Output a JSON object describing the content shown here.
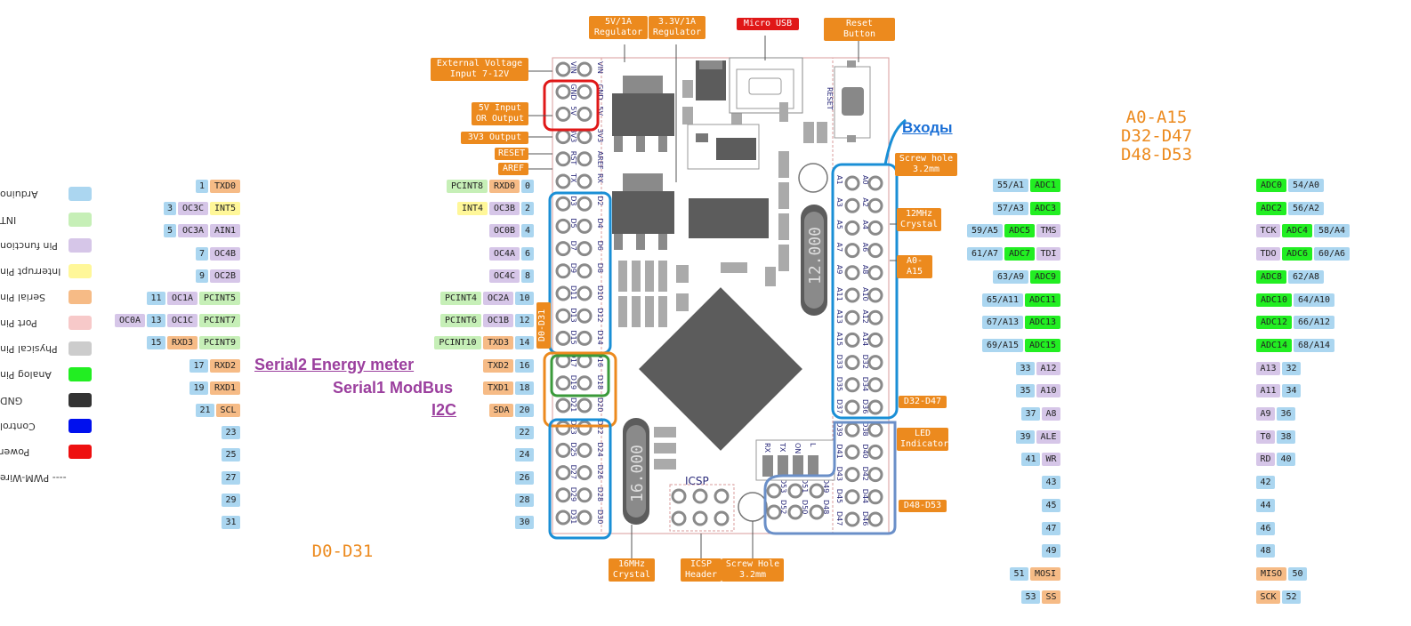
{
  "legend": [
    {
      "label": "Arduino",
      "color": "#abd6f0"
    },
    {
      "label": "INT",
      "color": "#c6efb7"
    },
    {
      "label": "Pin function",
      "color": "#d6c6e8"
    },
    {
      "label": "Interrupt Pin",
      "color": "#fff799"
    },
    {
      "label": "Serial Pin",
      "color": "#f6bb86"
    },
    {
      "label": "Port Pin",
      "color": "#f7c9c9"
    },
    {
      "label": "Physical Pin",
      "color": "#cccccc"
    },
    {
      "label": "Analog Pin",
      "color": "#22ee22"
    },
    {
      "label": "GND",
      "color": "#333333"
    },
    {
      "label": "Control",
      "color": "#0010ee"
    },
    {
      "label": "Power",
      "color": "#ee1010"
    },
    {
      "label": "---- PWM-Wire",
      "color": ""
    }
  ],
  "callouts": {
    "reg5v": "5V/1A\nRegulator",
    "reg33": "3.3V/1A\nRegulator",
    "usb": "Micro USB",
    "reset_btn": "Reset Button",
    "ext_volt": "External Voltage\nInput 7-12V",
    "v5_io": "5V Input\nOR Output",
    "v33_out": "3V3 Output",
    "reset": "RESET",
    "aref": "AREF",
    "screw_top": "Screw hole\n3.2mm",
    "crystal12": "12MHz\nCrystal",
    "a0a15": "A0-A15",
    "d32d47": "D32-D47",
    "led": "LED\nIndicator",
    "d48d53": "D48-D53",
    "d0d31_vert": "D0-D31",
    "crystal16": "16MHz\nCrystal",
    "icsp_hdr": "ICSP\nHeader",
    "screw_bot": "Screw Hole\n3.2mm"
  },
  "titles": {
    "right_group": "A0-A15\nD32-D47\nD48-D53",
    "left_group": "D0-D31",
    "inputs_note": "Входы",
    "serial2": "Serial2 Energy meter",
    "serial1": "Serial1 ModBus",
    "i2c": "I2C",
    "icsp": "ICSP",
    "crystal12_mark": "12.000",
    "crystal16_mark": "16.000",
    "reset_mark": "RESET"
  },
  "left_far_rows": [
    [
      {
        "t": "1",
        "c": "ard"
      },
      {
        "t": "TXD0",
        "c": "ser"
      }
    ],
    [
      {
        "t": "3",
        "c": "ard"
      },
      {
        "t": "OC3C",
        "c": "pcint"
      },
      {
        "t": "INT5",
        "c": "intr"
      }
    ],
    [
      {
        "t": "5",
        "c": "ard"
      },
      {
        "t": "OC3A",
        "c": "pcint"
      },
      {
        "t": "AIN1",
        "c": "pcint"
      }
    ],
    [
      {
        "t": "7",
        "c": "ard"
      },
      {
        "t": "OC4B",
        "c": "pcint"
      }
    ],
    [
      {
        "t": "9",
        "c": "ard"
      },
      {
        "t": "OC2B",
        "c": "pcint"
      }
    ],
    [
      {
        "t": "11",
        "c": "ard"
      },
      {
        "t": "OC1A",
        "c": "pcint"
      },
      {
        "t": "PCINT5",
        "c": "int"
      }
    ],
    [
      {
        "t": "OC0A",
        "c": "pcint"
      },
      {
        "t": "13",
        "c": "ard"
      },
      {
        "t": "OC1C",
        "c": "pcint"
      },
      {
        "t": "PCINT7",
        "c": "int"
      }
    ],
    [
      {
        "t": "15",
        "c": "ard"
      },
      {
        "t": "RXD3",
        "c": "ser"
      },
      {
        "t": "PCINT9",
        "c": "int"
      }
    ],
    [
      {
        "t": "17",
        "c": "ard"
      },
      {
        "t": "RXD2",
        "c": "ser"
      }
    ],
    [
      {
        "t": "19",
        "c": "ard"
      },
      {
        "t": "RXD1",
        "c": "ser"
      }
    ],
    [
      {
        "t": "21",
        "c": "ard"
      },
      {
        "t": "SCL",
        "c": "ser"
      }
    ],
    [
      {
        "t": "23",
        "c": "ard"
      }
    ],
    [
      {
        "t": "25",
        "c": "ard"
      }
    ],
    [
      {
        "t": "27",
        "c": "ard"
      }
    ],
    [
      {
        "t": "29",
        "c": "ard"
      }
    ],
    [
      {
        "t": "31",
        "c": "ard"
      }
    ]
  ],
  "left_near_rows": [
    [
      {
        "t": "PCINT8",
        "c": "int"
      },
      {
        "t": "RXD0",
        "c": "ser"
      },
      {
        "t": "0",
        "c": "ard"
      }
    ],
    [
      {
        "t": "INT4",
        "c": "intr"
      },
      {
        "t": "OC3B",
        "c": "pcint"
      },
      {
        "t": "2",
        "c": "ard"
      }
    ],
    [
      {
        "t": "OC0B",
        "c": "pcint"
      },
      {
        "t": "4",
        "c": "ard"
      }
    ],
    [
      {
        "t": "OC4A",
        "c": "pcint"
      },
      {
        "t": "6",
        "c": "ard"
      }
    ],
    [
      {
        "t": "OC4C",
        "c": "pcint"
      },
      {
        "t": "8",
        "c": "ard"
      }
    ],
    [
      {
        "t": "PCINT4",
        "c": "int"
      },
      {
        "t": "OC2A",
        "c": "pcint"
      },
      {
        "t": "10",
        "c": "ard"
      }
    ],
    [
      {
        "t": "PCINT6",
        "c": "int"
      },
      {
        "t": "OC1B",
        "c": "pcint"
      },
      {
        "t": "12",
        "c": "ard"
      }
    ],
    [
      {
        "t": "PCINT10",
        "c": "int"
      },
      {
        "t": "TXD3",
        "c": "ser"
      },
      {
        "t": "14",
        "c": "ard"
      }
    ],
    [
      {
        "t": "TXD2",
        "c": "ser"
      },
      {
        "t": "16",
        "c": "ard"
      }
    ],
    [
      {
        "t": "TXD1",
        "c": "ser"
      },
      {
        "t": "18",
        "c": "ard"
      }
    ],
    [
      {
        "t": "SDA",
        "c": "ser"
      },
      {
        "t": "20",
        "c": "ard"
      }
    ],
    [
      {
        "t": "22",
        "c": "ard"
      }
    ],
    [
      {
        "t": "24",
        "c": "ard"
      }
    ],
    [
      {
        "t": "26",
        "c": "ard"
      }
    ],
    [
      {
        "t": "28",
        "c": "ard"
      }
    ],
    [
      {
        "t": "30",
        "c": "ard"
      }
    ]
  ],
  "right_near_rows": [
    [
      {
        "t": "55/A1",
        "c": "ard"
      },
      {
        "t": "ADC1",
        "c": "adc"
      }
    ],
    [
      {
        "t": "57/A3",
        "c": "ard"
      },
      {
        "t": "ADC3",
        "c": "adc"
      }
    ],
    [
      {
        "t": "59/A5",
        "c": "ard"
      },
      {
        "t": "ADC5",
        "c": "adc"
      },
      {
        "t": "TMS",
        "c": "pcint"
      }
    ],
    [
      {
        "t": "61/A7",
        "c": "ard"
      },
      {
        "t": "ADC7",
        "c": "adc"
      },
      {
        "t": "TDI",
        "c": "pcint"
      }
    ],
    [
      {
        "t": "63/A9",
        "c": "ard"
      },
      {
        "t": "ADC9",
        "c": "adc"
      }
    ],
    [
      {
        "t": "65/A11",
        "c": "ard"
      },
      {
        "t": "ADC11",
        "c": "adc"
      }
    ],
    [
      {
        "t": "67/A13",
        "c": "ard"
      },
      {
        "t": "ADC13",
        "c": "adc"
      }
    ],
    [
      {
        "t": "69/A15",
        "c": "ard"
      },
      {
        "t": "ADC15",
        "c": "adc"
      }
    ],
    [
      {
        "t": "33",
        "c": "ard"
      },
      {
        "t": "A12",
        "c": "pcint"
      }
    ],
    [
      {
        "t": "35",
        "c": "ard"
      },
      {
        "t": "A10",
        "c": "pcint"
      }
    ],
    [
      {
        "t": "37",
        "c": "ard"
      },
      {
        "t": "A8",
        "c": "pcint"
      }
    ],
    [
      {
        "t": "39",
        "c": "ard"
      },
      {
        "t": "ALE",
        "c": "pcint"
      }
    ],
    [
      {
        "t": "41",
        "c": "ard"
      },
      {
        "t": "WR",
        "c": "pcint"
      }
    ],
    [
      {
        "t": "43",
        "c": "ard"
      }
    ],
    [
      {
        "t": "45",
        "c": "ard"
      }
    ],
    [
      {
        "t": "47",
        "c": "ard"
      }
    ],
    [
      {
        "t": "49",
        "c": "ard"
      }
    ],
    [
      {
        "t": "51",
        "c": "ard"
      },
      {
        "t": "MOSI",
        "c": "ser"
      }
    ],
    [
      {
        "t": "53",
        "c": "ard"
      },
      {
        "t": "SS",
        "c": "ser"
      }
    ]
  ],
  "right_far_rows": [
    [
      {
        "t": "ADC0",
        "c": "adc"
      },
      {
        "t": "54/A0",
        "c": "ard"
      }
    ],
    [
      {
        "t": "ADC2",
        "c": "adc"
      },
      {
        "t": "56/A2",
        "c": "ard"
      }
    ],
    [
      {
        "t": "TCK",
        "c": "pcint"
      },
      {
        "t": "ADC4",
        "c": "adc"
      },
      {
        "t": "58/A4",
        "c": "ard"
      }
    ],
    [
      {
        "t": "TDO",
        "c": "pcint"
      },
      {
        "t": "ADC6",
        "c": "adc"
      },
      {
        "t": "60/A6",
        "c": "ard"
      }
    ],
    [
      {
        "t": "ADC8",
        "c": "adc"
      },
      {
        "t": "62/A8",
        "c": "ard"
      }
    ],
    [
      {
        "t": "ADC10",
        "c": "adc"
      },
      {
        "t": "64/A10",
        "c": "ard"
      }
    ],
    [
      {
        "t": "ADC12",
        "c": "adc"
      },
      {
        "t": "66/A12",
        "c": "ard"
      }
    ],
    [
      {
        "t": "ADC14",
        "c": "adc"
      },
      {
        "t": "68/A14",
        "c": "ard"
      }
    ],
    [
      {
        "t": "A13",
        "c": "pcint"
      },
      {
        "t": "32",
        "c": "ard"
      }
    ],
    [
      {
        "t": "A11",
        "c": "pcint"
      },
      {
        "t": "34",
        "c": "ard"
      }
    ],
    [
      {
        "t": "A9",
        "c": "pcint"
      },
      {
        "t": "36",
        "c": "ard"
      }
    ],
    [
      {
        "t": "T0",
        "c": "pcint"
      },
      {
        "t": "38",
        "c": "ard"
      }
    ],
    [
      {
        "t": "RD",
        "c": "pcint"
      },
      {
        "t": "40",
        "c": "ard"
      }
    ],
    [
      {
        "t": "42",
        "c": "ard"
      }
    ],
    [
      {
        "t": "44",
        "c": "ard"
      }
    ],
    [
      {
        "t": "46",
        "c": "ard"
      }
    ],
    [
      {
        "t": "48",
        "c": "ard"
      }
    ],
    [
      {
        "t": "MISO",
        "c": "ser"
      },
      {
        "t": "50",
        "c": "ard"
      }
    ],
    [
      {
        "t": "SCK",
        "c": "ser"
      },
      {
        "t": "52",
        "c": "ard"
      }
    ]
  ],
  "board_left_pins": {
    "outer": [
      "VIN",
      "GND",
      "5V",
      "3V3",
      "RST",
      "TX",
      "D3",
      "D5",
      "D7",
      "D9",
      "D11",
      "D13",
      "D15",
      "D17",
      "D19",
      "D21",
      "D23",
      "D25",
      "D27",
      "D29",
      "D31"
    ],
    "inner": [
      "VIN",
      "GND",
      "5V",
      "3V3",
      "AREF",
      "RX",
      "D2",
      "D4",
      "D6",
      "D8",
      "D10",
      "D12",
      "D14",
      "D16",
      "D18",
      "D20",
      "D22",
      "D24",
      "D26",
      "D28",
      "D30"
    ]
  },
  "board_right_pins": {
    "inner": [
      "A1",
      "A3",
      "A5",
      "A7",
      "A9",
      "A11",
      "A13",
      "A15",
      "D33",
      "D35",
      "D37",
      "D39",
      "D41",
      "D43",
      "D45",
      "D47"
    ],
    "outer": [
      "A0",
      "A2",
      "A4",
      "A6",
      "A8",
      "A10",
      "A12",
      "A14",
      "D32",
      "D34",
      "D36",
      "D38",
      "D40",
      "D42",
      "D44",
      "D46"
    ]
  },
  "board_bottom_pins": {
    "top": [
      "D53",
      "D51",
      "D49"
    ],
    "bottom": [
      "D52",
      "D50",
      "D48"
    ]
  },
  "led_labels": [
    "RX",
    "TX",
    "ON",
    "L"
  ]
}
